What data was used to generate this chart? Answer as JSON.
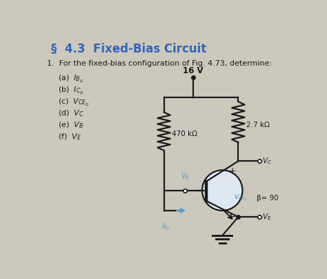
{
  "title": "§  4.3  Fixed-Bias Circuit",
  "title_color": "#3366bb",
  "title_fontsize": 12,
  "bg_color": "#ccc8bc",
  "question": "1.  For the fixed-bias configuration of Fig. 4.73, determine:",
  "items": [
    "(a)  $I_{B_Q}$",
    "(b)  $I_{C_Q}$",
    "(c)  $V_{CE_Q}$",
    "(d)  $V_C$",
    "(e)  $V_B$",
    "(f)  $V_E$"
  ],
  "vcc": "16 V",
  "rb": "470 kΩ",
  "rc": "2.7 kΩ",
  "beta": "β= 90",
  "circuit_bg": "#e8e4dc"
}
